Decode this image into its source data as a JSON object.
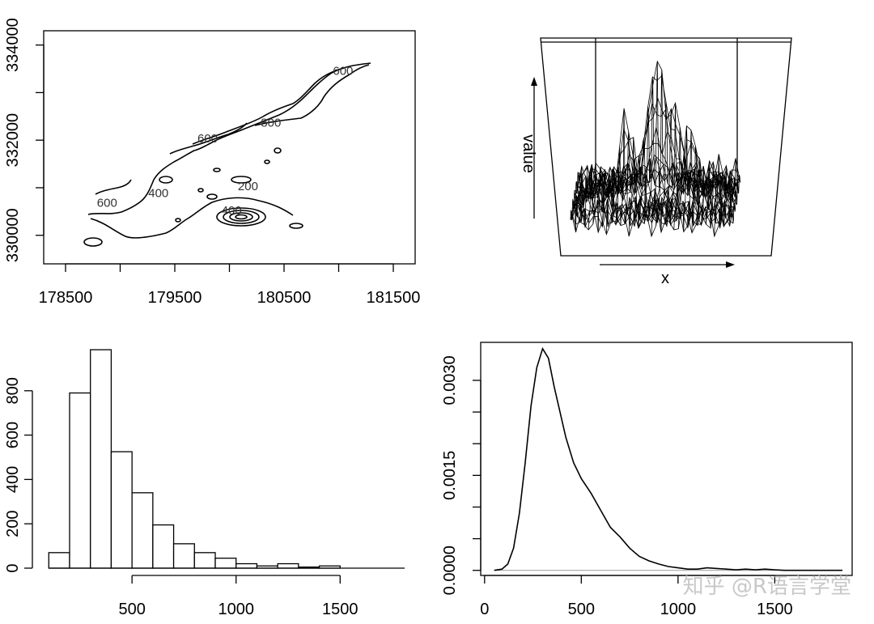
{
  "chart_data": [
    {
      "type": "contour",
      "x_ticks": [
        "178500",
        "179500",
        "180500",
        "181500"
      ],
      "x_tick_values": [
        178500,
        179500,
        180500,
        181500
      ],
      "y_ticks": [
        "330000",
        "332000",
        "334000"
      ],
      "y_tick_values": [
        330000,
        332000,
        334000
      ],
      "xlim": [
        178300,
        181700
      ],
      "ylim": [
        329400,
        334300
      ],
      "contour_labels": [
        {
          "text": "600",
          "x": 181040,
          "y": 333370
        },
        {
          "text": "800",
          "x": 180380,
          "y": 332280
        },
        {
          "text": "600",
          "x": 179800,
          "y": 331950
        },
        {
          "text": "400",
          "x": 179350,
          "y": 330800
        },
        {
          "text": "600",
          "x": 178880,
          "y": 330600
        },
        {
          "text": "200",
          "x": 180170,
          "y": 330950
        },
        {
          "text": "400",
          "x": 180020,
          "y": 330440
        }
      ]
    },
    {
      "type": "surface3d",
      "xlabel": "x",
      "zlabel": "value"
    },
    {
      "type": "histogram",
      "bins": [
        [
          100,
          200
        ],
        [
          200,
          300
        ],
        [
          300,
          400
        ],
        [
          400,
          500
        ],
        [
          500,
          600
        ],
        [
          600,
          700
        ],
        [
          700,
          800
        ],
        [
          800,
          900
        ],
        [
          900,
          1000
        ],
        [
          1000,
          1100
        ],
        [
          1100,
          1200
        ],
        [
          1200,
          1300
        ],
        [
          1300,
          1400
        ],
        [
          1400,
          1500
        ]
      ],
      "values": [
        70,
        790,
        985,
        525,
        340,
        195,
        110,
        70,
        45,
        20,
        10,
        20,
        5,
        10
      ],
      "x_ticks": [
        "500",
        "1000",
        "1500"
      ],
      "x_tick_values": [
        500,
        1000,
        1500
      ],
      "y_ticks": [
        "0",
        "200",
        "400",
        "600",
        "800"
      ],
      "y_tick_values": [
        0,
        200,
        400,
        600,
        800
      ],
      "xlim": [
        60,
        1810
      ],
      "ylim": [
        0,
        1000
      ]
    },
    {
      "type": "line",
      "x": [
        50,
        90,
        120,
        150,
        180,
        210,
        240,
        270,
        300,
        330,
        360,
        390,
        420,
        460,
        500,
        550,
        600,
        650,
        700,
        750,
        800,
        850,
        900,
        950,
        1000,
        1050,
        1100,
        1150,
        1200,
        1250,
        1300,
        1350,
        1400,
        1450,
        1500,
        1550,
        1600,
        1700,
        1850
      ],
      "y": [
        0,
        2e-05,
        0.0001,
        0.00035,
        0.0009,
        0.0017,
        0.0026,
        0.0032,
        0.0035,
        0.00335,
        0.0029,
        0.0025,
        0.0021,
        0.0017,
        0.00145,
        0.00122,
        0.00095,
        0.00068,
        0.00053,
        0.00035,
        0.00022,
        0.00015,
        0.0001,
        6e-05,
        4e-05,
        2e-05,
        2e-05,
        4e-05,
        3e-05,
        2e-05,
        1e-05,
        2e-05,
        1e-05,
        2e-05,
        1e-05,
        0,
        0,
        0,
        0
      ],
      "x_ticks": [
        "0",
        "500",
        "1000",
        "1500"
      ],
      "x_tick_values": [
        0,
        500,
        1000,
        1500
      ],
      "y_ticks": [
        "0.0000",
        "0.0015",
        "0.0030"
      ],
      "y_tick_values": [
        0,
        0.0015,
        0.003
      ],
      "xlim": [
        -20,
        1900
      ],
      "ylim": [
        -8e-05,
        0.0036
      ]
    }
  ],
  "watermark": "知乎 @R语言学堂"
}
